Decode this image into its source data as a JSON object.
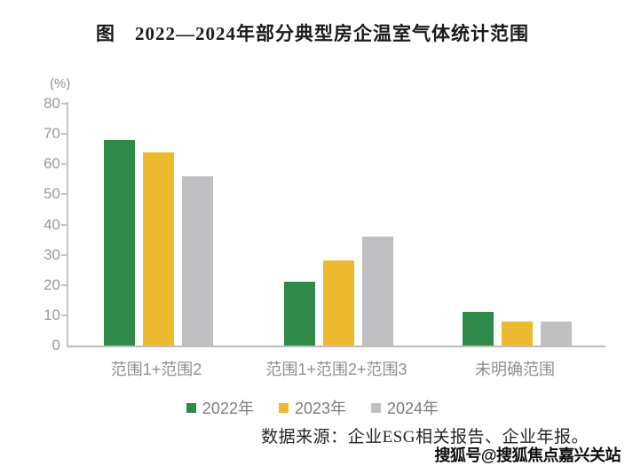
{
  "title": "图　2022—2024年部分典型房企温室气体统计范围",
  "chart_data": {
    "type": "bar",
    "title": "图 2022—2024年部分典型房企温室气体统计范围",
    "ylabel": "(%)",
    "ylim": [
      0,
      80
    ],
    "ytick_step": 10,
    "yticks": [
      0,
      10,
      20,
      30,
      40,
      50,
      60,
      70,
      80
    ],
    "grid": false,
    "legend_position": "bottom",
    "categories": [
      "范围1+范围2",
      "范围1+范围2+范围3",
      "未明确范围"
    ],
    "series": [
      {
        "name": "2022年",
        "color": "#2f8a4a",
        "values": [
          68,
          21,
          11
        ]
      },
      {
        "name": "2023年",
        "color": "#edb92f",
        "values": [
          64,
          28,
          8
        ]
      },
      {
        "name": "2024年",
        "color": "#c0c0c2",
        "values": [
          56,
          36,
          8
        ]
      }
    ]
  },
  "source": "数据来源：企业ESG相关报告、企业年报。",
  "watermark": "搜狐号@搜狐焦点嘉兴关站",
  "colors": {
    "axis_line": "#c5c5c5",
    "tick_text": "#999999",
    "category_text": "#8f8f8f",
    "legend_text": "#7d7d7d",
    "title_text": "#1a1a1a"
  }
}
